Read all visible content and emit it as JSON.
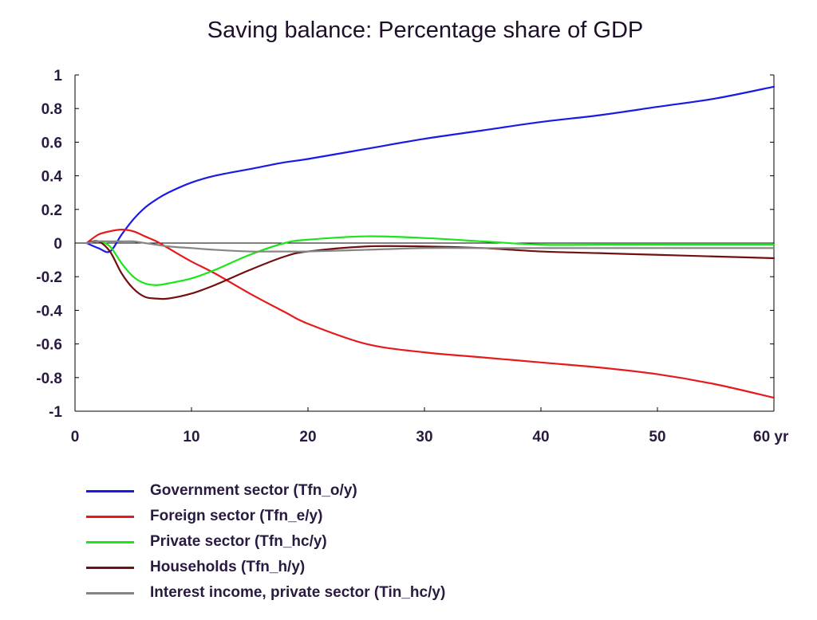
{
  "chart_data": {
    "type": "line",
    "title": "Saving balance: Percentage share of GDP",
    "xlabel": "",
    "ylabel": "",
    "xlim": [
      0,
      60
    ],
    "ylim": [
      -1,
      1
    ],
    "x_ticks": [
      "0",
      "10",
      "20",
      "30",
      "40",
      "50",
      "60 yr"
    ],
    "y_ticks": [
      "1",
      "0.8",
      "0.6",
      "0.4",
      "0.2",
      "0",
      "-0.2",
      "-0.4",
      "-0.6",
      "-0.8",
      "-1"
    ],
    "zero_line": true,
    "grid": false,
    "legend_position": "bottom",
    "series": [
      {
        "name": "Government sector (Tfn_o/y)",
        "color": "#1a1ae6",
        "x": [
          1,
          2,
          3,
          4,
          5,
          6,
          7,
          8,
          10,
          12,
          15,
          18,
          20,
          25,
          30,
          35,
          40,
          45,
          50,
          55,
          60
        ],
        "values": [
          0,
          -0.03,
          -0.05,
          0.05,
          0.14,
          0.21,
          0.26,
          0.3,
          0.36,
          0.4,
          0.44,
          0.48,
          0.5,
          0.56,
          0.62,
          0.67,
          0.72,
          0.76,
          0.81,
          0.86,
          0.93
        ]
      },
      {
        "name": "Foreign sector (Tfn_e/y)",
        "color": "#e61a1a",
        "x": [
          1,
          2,
          3,
          4,
          5,
          6,
          7,
          8,
          10,
          12,
          15,
          18,
          20,
          25,
          30,
          35,
          40,
          45,
          50,
          55,
          60
        ],
        "values": [
          0,
          0.05,
          0.07,
          0.08,
          0.07,
          0.04,
          0.01,
          -0.03,
          -0.11,
          -0.18,
          -0.3,
          -0.41,
          -0.48,
          -0.6,
          -0.65,
          -0.68,
          -0.71,
          -0.74,
          -0.78,
          -0.84,
          -0.92
        ]
      },
      {
        "name": "Private sector (Tfn_hc/y)",
        "color": "#1ae61a",
        "x": [
          1,
          2,
          3,
          4,
          5,
          6,
          7,
          8,
          10,
          12,
          15,
          18,
          20,
          25,
          30,
          35,
          40,
          45,
          50,
          55,
          60
        ],
        "values": [
          0,
          0.01,
          -0.02,
          -0.12,
          -0.2,
          -0.24,
          -0.25,
          -0.24,
          -0.21,
          -0.16,
          -0.07,
          0,
          0.02,
          0.04,
          0.03,
          0.01,
          -0.01,
          -0.01,
          -0.01,
          -0.01,
          -0.01
        ]
      },
      {
        "name": "Households (Tfn_h/y)",
        "color": "#701010",
        "x": [
          1,
          2,
          3,
          4,
          5,
          6,
          7,
          8,
          10,
          12,
          15,
          18,
          20,
          25,
          30,
          35,
          40,
          45,
          50,
          55,
          60
        ],
        "values": [
          0,
          0.01,
          -0.05,
          -0.18,
          -0.27,
          -0.32,
          -0.33,
          -0.33,
          -0.3,
          -0.25,
          -0.16,
          -0.08,
          -0.05,
          -0.02,
          -0.02,
          -0.03,
          -0.05,
          -0.06,
          -0.07,
          -0.08,
          -0.09
        ]
      },
      {
        "name": "Interest income, private sector (Tin_hc/y)",
        "color": "#858585",
        "x": [
          1,
          2,
          3,
          4,
          5,
          6,
          7,
          8,
          10,
          12,
          15,
          18,
          20,
          25,
          30,
          35,
          40,
          45,
          50,
          55,
          60
        ],
        "values": [
          0,
          0.01,
          0.01,
          0.01,
          0.01,
          0,
          -0.01,
          -0.02,
          -0.03,
          -0.04,
          -0.05,
          -0.05,
          -0.05,
          -0.04,
          -0.03,
          -0.03,
          -0.03,
          -0.03,
          -0.03,
          -0.03,
          -0.03
        ]
      }
    ]
  }
}
